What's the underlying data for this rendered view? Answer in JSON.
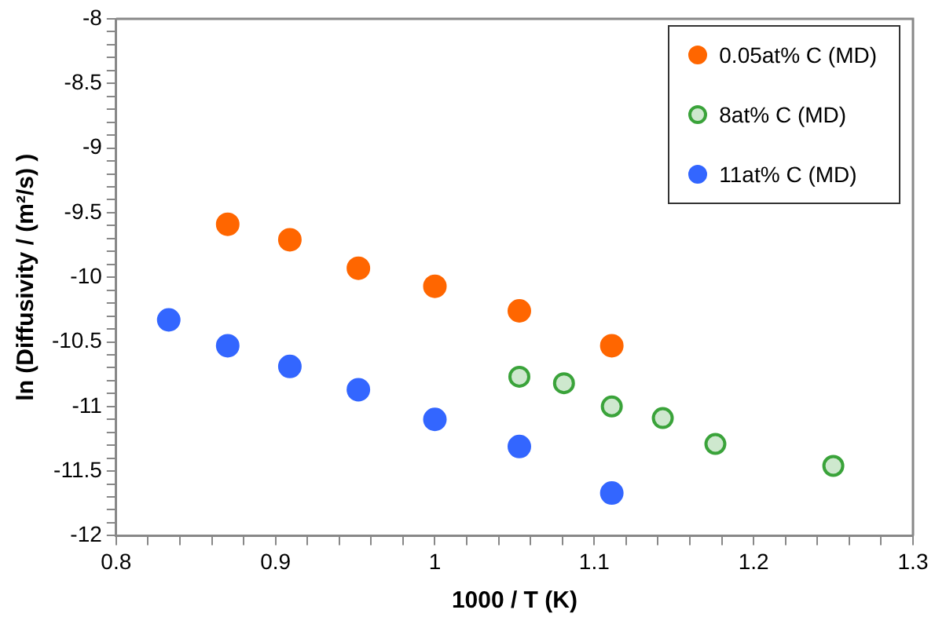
{
  "chart_data": {
    "type": "scatter",
    "xlabel": "1000 / T (K)",
    "ylabel": "ln (Diffusivity / (m²/s) )",
    "xlim": [
      0.8,
      1.3
    ],
    "ylim": [
      -12,
      -8
    ],
    "xticks": [
      0.8,
      {
        "value": 0.82,
        "label": null
      },
      {
        "value": 0.84,
        "label": null
      },
      {
        "value": 0.86,
        "label": null
      },
      {
        "value": 0.88,
        "label": null
      },
      0.9,
      {
        "value": 0.92,
        "label": null
      },
      {
        "value": 0.94,
        "label": null
      },
      {
        "value": 0.96,
        "label": null
      },
      {
        "value": 0.98,
        "label": null
      },
      1,
      {
        "value": 1.02,
        "label": null
      },
      {
        "value": 1.04,
        "label": null
      },
      {
        "value": 1.06,
        "label": null
      },
      {
        "value": 1.08,
        "label": null
      },
      1.1,
      {
        "value": 1.12,
        "label": null
      },
      {
        "value": 1.14,
        "label": null
      },
      {
        "value": 1.16,
        "label": null
      },
      {
        "value": 1.18,
        "label": null
      },
      1.2,
      {
        "value": 1.22,
        "label": null
      },
      {
        "value": 1.24,
        "label": null
      },
      {
        "value": 1.26,
        "label": null
      },
      {
        "value": 1.28,
        "label": null
      },
      1.3
    ],
    "yticks": [
      -12,
      {
        "value": -11.9,
        "label": null
      },
      {
        "value": -11.8,
        "label": null
      },
      {
        "value": -11.7,
        "label": null
      },
      {
        "value": -11.6,
        "label": null
      },
      -11.5,
      {
        "value": -11.4,
        "label": null
      },
      {
        "value": -11.3,
        "label": null
      },
      {
        "value": -11.2,
        "label": null
      },
      {
        "value": -11.1,
        "label": null
      },
      -11,
      {
        "value": -10.9,
        "label": null
      },
      {
        "value": -10.8,
        "label": null
      },
      {
        "value": -10.7,
        "label": null
      },
      {
        "value": -10.6,
        "label": null
      },
      -10.5,
      {
        "value": -10.4,
        "label": null
      },
      {
        "value": -10.3,
        "label": null
      },
      {
        "value": -10.2,
        "label": null
      },
      {
        "value": -10.1,
        "label": null
      },
      -10,
      {
        "value": -9.9,
        "label": null
      },
      {
        "value": -9.8,
        "label": null
      },
      {
        "value": -9.7,
        "label": null
      },
      {
        "value": -9.6,
        "label": null
      },
      -9.5,
      {
        "value": -9.4,
        "label": null
      },
      {
        "value": -9.3,
        "label": null
      },
      {
        "value": -9.2,
        "label": null
      },
      {
        "value": -9.1,
        "label": null
      },
      -9,
      {
        "value": -8.9,
        "label": null
      },
      {
        "value": -8.8,
        "label": null
      },
      {
        "value": -8.7,
        "label": null
      },
      {
        "value": -8.6,
        "label": null
      },
      -8.5,
      {
        "value": -8.4,
        "label": null
      },
      {
        "value": -8.3,
        "label": null
      },
      {
        "value": -8.2,
        "label": null
      },
      {
        "value": -8.1,
        "label": null
      },
      -8
    ],
    "grid": false,
    "legend": "top right",
    "marker": "circle",
    "series": [
      {
        "name": "0.05at% C (MD)",
        "color": "#ff6600",
        "x": [
          0.87,
          0.909,
          0.952,
          1,
          1.053,
          1.111
        ],
        "values": [
          -9.59,
          -9.71,
          -9.93,
          -10.07,
          -10.26,
          -10.53
        ]
      },
      {
        "name": "8at% C (MD)",
        "color": "#3aa33a",
        "x": [
          1.053,
          1.081,
          1.111,
          1.143,
          1.176,
          1.25
        ],
        "values": [
          -10.77,
          -10.82,
          -11.0,
          -11.09,
          -11.29,
          -11.46
        ]
      },
      {
        "name": "11at% C (MD)",
        "color": "#3366ff",
        "x": [
          0.833,
          0.87,
          0.909,
          0.952,
          1,
          1.053,
          1.111
        ],
        "values": [
          -10.33,
          -10.53,
          -10.69,
          -10.87,
          -11.1,
          -11.31,
          -11.67
        ]
      }
    ]
  }
}
